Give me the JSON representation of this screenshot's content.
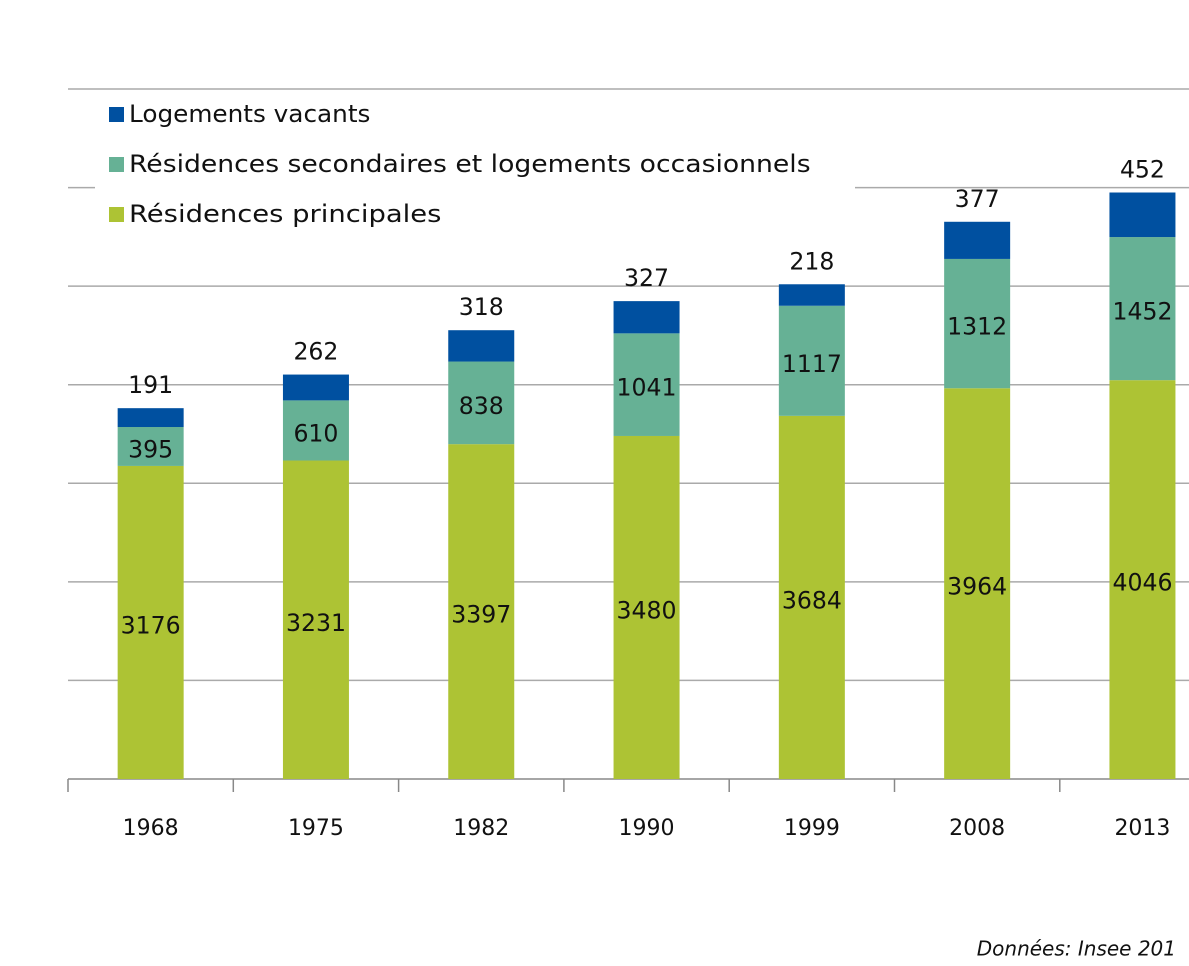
{
  "chart_data": {
    "type": "stacked_bar",
    "categories": [
      "1968",
      "1975",
      "1982",
      "1990",
      "1999",
      "2008",
      "2013"
    ],
    "series": [
      {
        "name": "Résidences principales",
        "color": "#adc334",
        "values": [
          3176,
          3231,
          3397,
          3480,
          3684,
          3964,
          4046
        ]
      },
      {
        "name": "Résidences secondaires et logements occasionnels",
        "color": "#66b195",
        "values": [
          395,
          610,
          838,
          1041,
          1117,
          1312,
          1452
        ]
      },
      {
        "name": "Logements vacants",
        "color": "#0050a0",
        "values": [
          191,
          262,
          318,
          327,
          218,
          377,
          452
        ]
      }
    ],
    "ylim": [
      0,
      7000
    ],
    "yticks": [
      0,
      1000,
      2000,
      3000,
      4000,
      5000,
      6000,
      7000
    ],
    "ytick_labels": false,
    "grid": true,
    "legend": "top-left",
    "source": "Données:  Insee 201"
  }
}
